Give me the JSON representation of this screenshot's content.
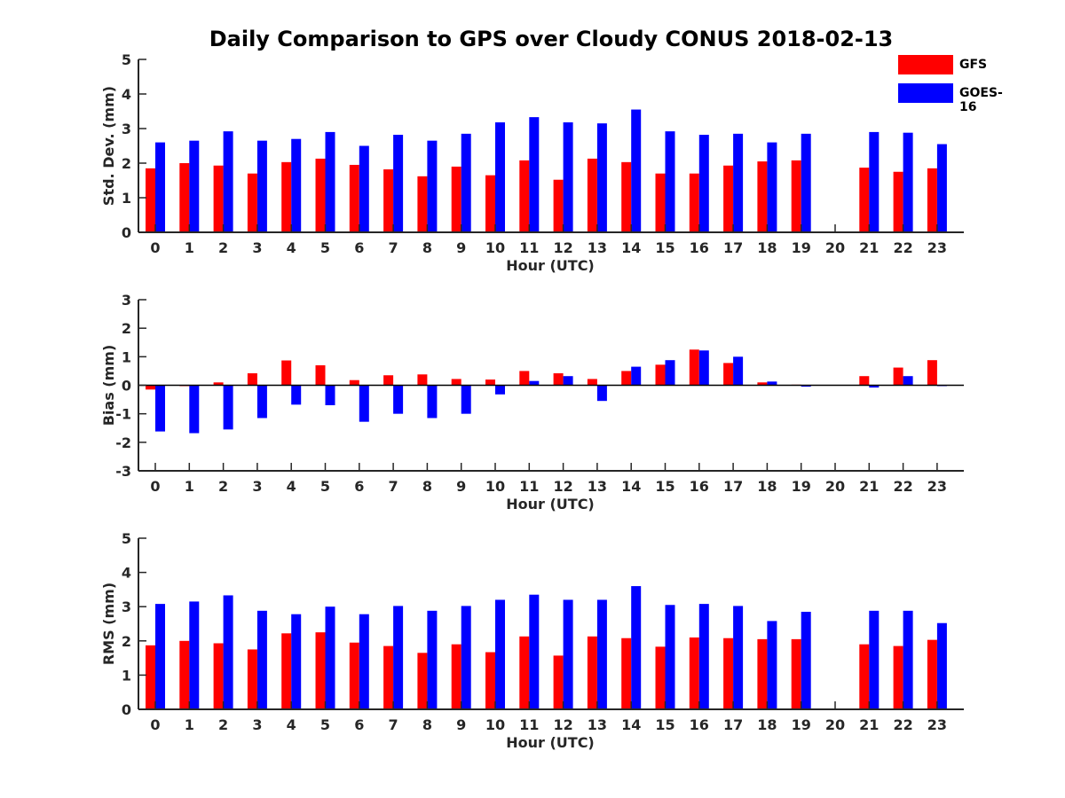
{
  "title": "Daily Comparison to GPS over Cloudy CONUS 2018-02-13",
  "legend": [
    {
      "name": "GFS",
      "color": "#ff0000"
    },
    {
      "name": "GOES-16",
      "color": "#0000ff"
    }
  ],
  "chart_data": [
    {
      "type": "bar",
      "ylabel": "Std. Dev. (mm)",
      "xlabel": "Hour (UTC)",
      "ylim": [
        0,
        5
      ],
      "yticks": [
        0,
        1,
        2,
        3,
        4,
        5
      ],
      "categories": [
        "0",
        "1",
        "2",
        "3",
        "4",
        "5",
        "6",
        "7",
        "8",
        "9",
        "10",
        "11",
        "12",
        "13",
        "14",
        "15",
        "16",
        "17",
        "18",
        "19",
        "20",
        "21",
        "22",
        "23"
      ],
      "series": [
        {
          "name": "GFS",
          "values": [
            1.85,
            2.0,
            1.93,
            1.7,
            2.03,
            2.13,
            1.95,
            1.82,
            1.62,
            1.9,
            1.65,
            2.08,
            1.52,
            2.13,
            2.03,
            1.7,
            1.7,
            1.93,
            2.05,
            2.08,
            null,
            1.87,
            1.75,
            1.85
          ]
        },
        {
          "name": "GOES-16",
          "values": [
            2.6,
            2.65,
            2.92,
            2.65,
            2.7,
            2.9,
            2.5,
            2.82,
            2.65,
            2.85,
            3.18,
            3.33,
            3.18,
            3.15,
            3.55,
            2.92,
            2.82,
            2.85,
            2.6,
            2.85,
            null,
            2.9,
            2.88,
            2.55
          ]
        }
      ]
    },
    {
      "type": "bar",
      "ylabel": "Bias (mm)",
      "xlabel": "Hour (UTC)",
      "ylim": [
        -3,
        3
      ],
      "yticks": [
        -3,
        -2,
        -1,
        0,
        1,
        2,
        3
      ],
      "categories": [
        "0",
        "1",
        "2",
        "3",
        "4",
        "5",
        "6",
        "7",
        "8",
        "9",
        "10",
        "11",
        "12",
        "13",
        "14",
        "15",
        "16",
        "17",
        "18",
        "19",
        "20",
        "21",
        "22",
        "23"
      ],
      "series": [
        {
          "name": "GFS",
          "values": [
            -0.15,
            -0.03,
            0.1,
            0.42,
            0.87,
            0.7,
            0.18,
            0.35,
            0.38,
            0.22,
            0.2,
            0.5,
            0.42,
            0.22,
            0.5,
            0.72,
            1.25,
            0.78,
            0.1,
            0.02,
            null,
            0.32,
            0.62,
            0.88
          ]
        },
        {
          "name": "GOES-16",
          "values": [
            -1.62,
            -1.68,
            -1.55,
            -1.15,
            -0.68,
            -0.7,
            -1.28,
            -1.0,
            -1.15,
            -1.0,
            -0.32,
            0.15,
            0.32,
            -0.55,
            0.65,
            0.88,
            1.22,
            1.0,
            0.13,
            -0.05,
            null,
            -0.08,
            0.32,
            -0.03
          ]
        }
      ]
    },
    {
      "type": "bar",
      "ylabel": "RMS (mm)",
      "xlabel": "Hour (UTC)",
      "ylim": [
        0,
        5
      ],
      "yticks": [
        0,
        1,
        2,
        3,
        4,
        5
      ],
      "categories": [
        "0",
        "1",
        "2",
        "3",
        "4",
        "5",
        "6",
        "7",
        "8",
        "9",
        "10",
        "11",
        "12",
        "13",
        "14",
        "15",
        "16",
        "17",
        "18",
        "19",
        "20",
        "21",
        "22",
        "23"
      ],
      "series": [
        {
          "name": "GFS",
          "values": [
            1.87,
            2.0,
            1.93,
            1.75,
            2.22,
            2.25,
            1.95,
            1.85,
            1.65,
            1.9,
            1.67,
            2.13,
            1.57,
            2.13,
            2.08,
            1.83,
            2.1,
            2.08,
            2.05,
            2.05,
            null,
            1.9,
            1.85,
            2.03
          ]
        },
        {
          "name": "GOES-16",
          "values": [
            3.08,
            3.15,
            3.33,
            2.88,
            2.78,
            3.0,
            2.78,
            3.02,
            2.88,
            3.02,
            3.2,
            3.35,
            3.2,
            3.2,
            3.6,
            3.05,
            3.08,
            3.02,
            2.58,
            2.85,
            null,
            2.88,
            2.88,
            2.52
          ]
        }
      ]
    }
  ]
}
